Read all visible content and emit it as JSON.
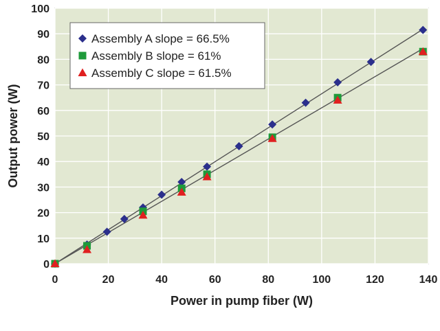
{
  "chart_data": {
    "type": "scatter",
    "xlabel": "Power in pump fiber (W)",
    "ylabel": "Output power (W)",
    "xlim": [
      0,
      140
    ],
    "ylim": [
      0,
      100
    ],
    "xticks": [
      0,
      20,
      40,
      60,
      80,
      100,
      120,
      140
    ],
    "yticks": [
      0,
      10,
      20,
      30,
      40,
      50,
      60,
      70,
      80,
      90,
      100
    ],
    "grid": true,
    "legend_position": "top-left",
    "background": "#e2e8d2",
    "series": [
      {
        "name": "Assembly A slope = 66.5%",
        "marker": "diamond",
        "color": "#2b2f8c",
        "x": [
          0,
          12,
          19.5,
          26,
          33,
          40,
          47.5,
          57,
          69,
          81.5,
          94,
          106,
          118.5,
          138
        ],
        "y": [
          0,
          7.5,
          12.5,
          17.5,
          22,
          27,
          32,
          38,
          46,
          54.5,
          63,
          71,
          79,
          91.5
        ]
      },
      {
        "name": "Assembly B slope = 61%",
        "marker": "square",
        "color": "#1e9a3a",
        "x": [
          0,
          12,
          33,
          47.5,
          57,
          81.5,
          106,
          138
        ],
        "y": [
          0,
          7,
          20.5,
          29.5,
          35,
          49.5,
          65,
          83
        ]
      },
      {
        "name": "Assembly C slope = 61.5%",
        "marker": "triangle",
        "color": "#e02020",
        "x": [
          0,
          12,
          33,
          47.5,
          57,
          81.5,
          106,
          138
        ],
        "y": [
          0,
          5.5,
          19,
          28,
          34,
          49,
          64,
          83
        ]
      }
    ],
    "fit_lines": [
      {
        "x": [
          0,
          138
        ],
        "y": [
          0,
          91.8
        ]
      },
      {
        "x": [
          0,
          138
        ],
        "y": [
          0,
          84.2
        ]
      }
    ]
  }
}
